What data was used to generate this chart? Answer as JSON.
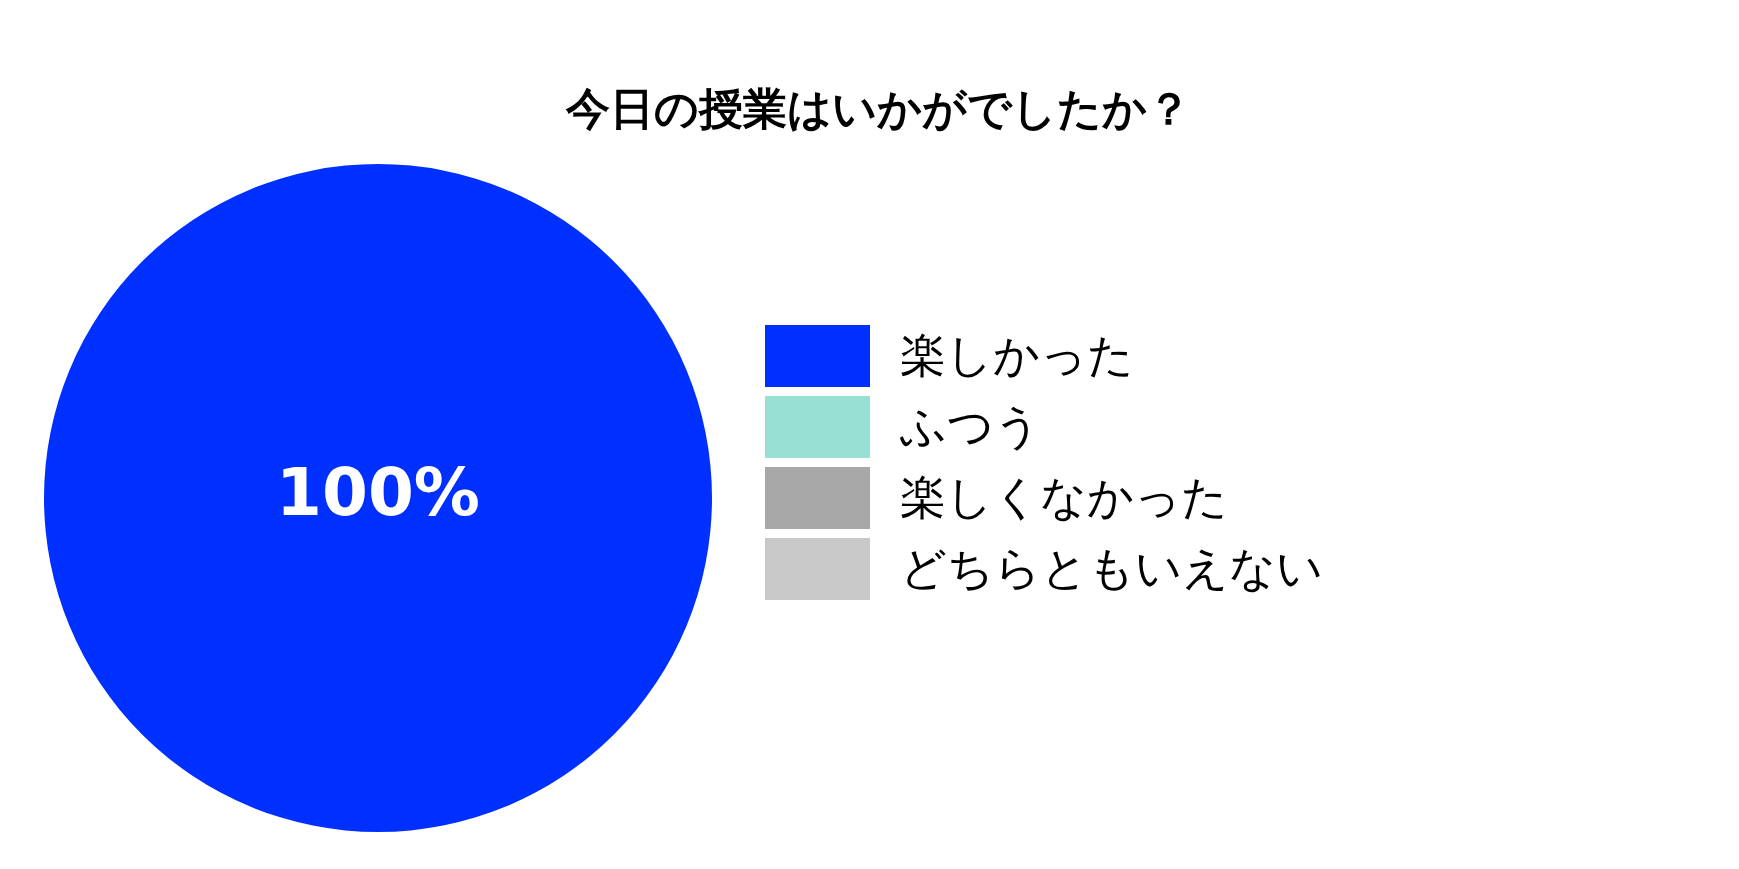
{
  "chart_data": {
    "type": "pie",
    "title": "今日の授業はいかがでしたか？",
    "categories": [
      "楽しかった",
      "ふつう",
      "楽しくなかった",
      "どちらともいえない"
    ],
    "values": [
      100,
      0,
      0,
      0
    ],
    "colors": [
      "#0030ff",
      "#99e0d4",
      "#a8a8a8",
      "#c8c8c8"
    ],
    "value_labels": [
      "100%",
      null,
      null,
      null
    ],
    "legend": "right"
  }
}
